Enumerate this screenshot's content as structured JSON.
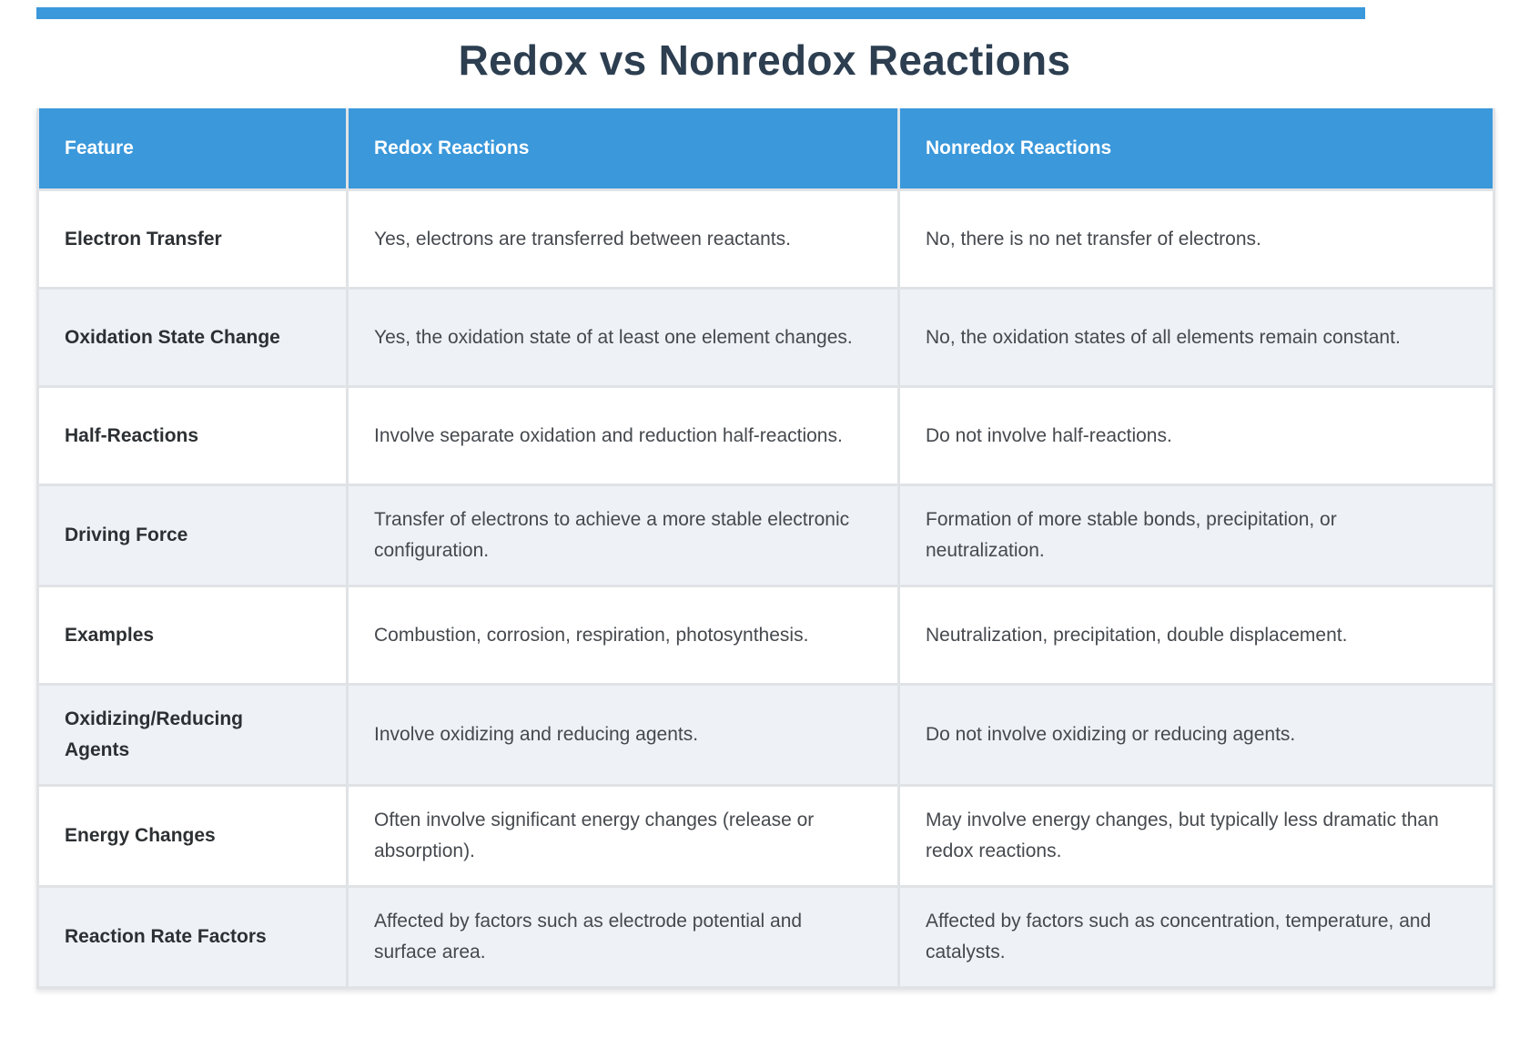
{
  "page": {
    "title": "Redox vs Nonredox Reactions"
  },
  "table": {
    "columns": [
      "Feature",
      "Redox Reactions",
      "Nonredox Reactions"
    ],
    "rows": [
      {
        "feature": "Electron Transfer",
        "redox": "Yes, electrons are transferred between reactants.",
        "nonredox": "No, there is no net transfer of electrons."
      },
      {
        "feature": "Oxidation State Change",
        "redox": "Yes, the oxidation state of at least one element changes.",
        "nonredox": "No, the oxidation states of all elements remain constant."
      },
      {
        "feature": "Half-Reactions",
        "redox": "Involve separate oxidation and reduction half-reactions.",
        "nonredox": "Do not involve half-reactions."
      },
      {
        "feature": "Driving Force",
        "redox": "Transfer of electrons to achieve a more stable electronic configuration.",
        "nonredox": "Formation of more stable bonds, precipitation, or neutralization."
      },
      {
        "feature": "Examples",
        "redox": "Combustion, corrosion, respiration, photosynthesis.",
        "nonredox": "Neutralization, precipitation, double displacement."
      },
      {
        "feature": "Oxidizing/Reducing Agents",
        "redox": "Involve oxidizing and reducing agents.",
        "nonredox": "Do not involve oxidizing or reducing agents."
      },
      {
        "feature": "Energy Changes",
        "redox": "Often involve significant energy changes (release or absorption).",
        "nonredox": "May involve energy changes, but typically less dramatic than redox reactions."
      },
      {
        "feature": "Reaction Rate Factors",
        "redox": "Affected by factors such as electrode potential and surface area.",
        "nonredox": "Affected by factors such as concentration, temperature, and catalysts."
      }
    ]
  },
  "colors": {
    "accent": "#3a98db",
    "header-bg": "#3a98db",
    "header-text": "#ffffff",
    "title-text": "#2c3e50",
    "feature-text": "#2c3033",
    "body-text": "#45494e",
    "row-bg": "#ffffff",
    "row-alt-bg": "#eef2f7",
    "border": "#e0e3e6"
  }
}
